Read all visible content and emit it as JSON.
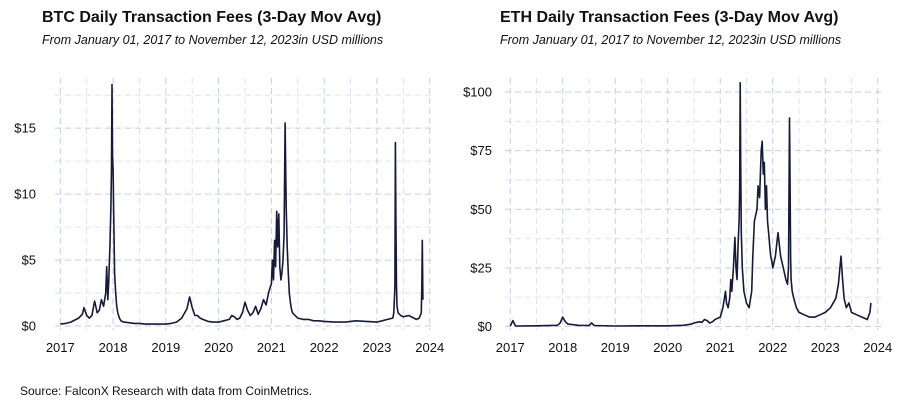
{
  "colors": {
    "line": "#17193a",
    "grid": "#c3cfe2"
  },
  "source": "Source: FalconX Research with data from CoinMetrics.",
  "chart_data": [
    {
      "type": "line",
      "title": "BTC Daily Transaction Fees (3-Day Mov Avg)",
      "subtitle": "From January 01, 2017 to November 12, 2023in USD millions",
      "xlabel": "",
      "ylabel": "",
      "xlim": [
        2016.9,
        2024.1
      ],
      "ylim": [
        -0.3,
        18.8
      ],
      "x_ticks": [
        2017,
        2018,
        2019,
        2020,
        2021,
        2022,
        2023,
        2024
      ],
      "x_tick_labels": [
        "2017",
        "2018",
        "2019",
        "2020",
        "2021",
        "2022",
        "2023",
        "2024"
      ],
      "y_ticks": [
        0,
        5,
        10,
        15
      ],
      "y_tick_labels": [
        "$0",
        "$5",
        "$10",
        "$15"
      ],
      "grid": true,
      "series": [
        {
          "name": "BTC fees",
          "x": [
            2017.0,
            2017.1,
            2017.2,
            2017.3,
            2017.35,
            2017.42,
            2017.45,
            2017.5,
            2017.55,
            2017.6,
            2017.65,
            2017.7,
            2017.74,
            2017.78,
            2017.82,
            2017.86,
            2017.88,
            2017.9,
            2017.92,
            2017.94,
            2017.96,
            2017.97,
            2017.98,
            2017.99,
            2018.0,
            2018.01,
            2018.02,
            2018.03,
            2018.05,
            2018.07,
            2018.09,
            2018.12,
            2018.15,
            2018.2,
            2018.3,
            2018.4,
            2018.5,
            2018.6,
            2018.7,
            2018.8,
            2018.9,
            2019.0,
            2019.1,
            2019.2,
            2019.3,
            2019.4,
            2019.45,
            2019.5,
            2019.55,
            2019.6,
            2019.65,
            2019.7,
            2019.8,
            2019.9,
            2020.0,
            2020.1,
            2020.2,
            2020.25,
            2020.3,
            2020.35,
            2020.4,
            2020.45,
            2020.5,
            2020.55,
            2020.6,
            2020.65,
            2020.7,
            2020.75,
            2020.8,
            2020.85,
            2020.9,
            2020.95,
            2021.0,
            2021.02,
            2021.04,
            2021.06,
            2021.08,
            2021.1,
            2021.12,
            2021.14,
            2021.16,
            2021.18,
            2021.2,
            2021.22,
            2021.24,
            2021.26,
            2021.28,
            2021.3,
            2021.32,
            2021.34,
            2021.36,
            2021.38,
            2021.4,
            2021.45,
            2021.5,
            2021.6,
            2021.7,
            2021.8,
            2021.9,
            2022.0,
            2022.2,
            2022.4,
            2022.6,
            2022.8,
            2023.0,
            2023.1,
            2023.2,
            2023.3,
            2023.32,
            2023.34,
            2023.35,
            2023.36,
            2023.37,
            2023.38,
            2023.4,
            2023.45,
            2023.5,
            2023.6,
            2023.7,
            2023.75,
            2023.8,
            2023.82,
            2023.84,
            2023.85,
            2023.86,
            2023.87
          ],
          "values": [
            0.15,
            0.2,
            0.3,
            0.5,
            0.6,
            0.9,
            1.4,
            0.8,
            0.6,
            0.8,
            1.9,
            1.0,
            1.2,
            2.0,
            1.5,
            2.5,
            4.5,
            2.0,
            3.5,
            6.0,
            9.0,
            12.0,
            18.3,
            13.0,
            11.8,
            9.0,
            6.5,
            4.0,
            2.5,
            1.5,
            1.0,
            0.6,
            0.4,
            0.3,
            0.25,
            0.2,
            0.2,
            0.15,
            0.15,
            0.15,
            0.15,
            0.15,
            0.2,
            0.3,
            0.6,
            1.3,
            2.2,
            1.4,
            0.8,
            0.8,
            0.6,
            0.5,
            0.35,
            0.3,
            0.3,
            0.4,
            0.5,
            0.8,
            0.7,
            0.5,
            0.6,
            1.0,
            1.8,
            1.2,
            0.8,
            1.0,
            1.5,
            0.9,
            1.3,
            2.0,
            1.6,
            2.6,
            3.2,
            5.0,
            3.5,
            6.5,
            4.5,
            8.7,
            6.0,
            8.5,
            4.5,
            3.5,
            4.0,
            5.0,
            7.0,
            15.4,
            9.0,
            6.0,
            4.0,
            2.5,
            1.8,
            1.3,
            1.0,
            0.8,
            0.6,
            0.5,
            0.5,
            0.4,
            0.4,
            0.35,
            0.3,
            0.3,
            0.4,
            0.35,
            0.3,
            0.4,
            0.5,
            0.6,
            1.0,
            3.0,
            13.9,
            8.0,
            3.0,
            1.5,
            1.0,
            0.8,
            0.7,
            0.8,
            0.6,
            0.5,
            0.6,
            0.8,
            1.0,
            3.0,
            6.5,
            2.0
          ]
        }
      ]
    },
    {
      "type": "line",
      "title": "ETH Daily Transaction Fees (3-Day Mov Avg)",
      "subtitle": "From January 01, 2017 to November 12, 2023in USD millions",
      "xlabel": "",
      "ylabel": "",
      "xlim": [
        2016.9,
        2024.1
      ],
      "ylim": [
        -1.5,
        106
      ],
      "x_ticks": [
        2017,
        2018,
        2019,
        2020,
        2021,
        2022,
        2023,
        2024
      ],
      "x_tick_labels": [
        "2017",
        "2018",
        "2019",
        "2020",
        "2021",
        "2022",
        "2023",
        "2024"
      ],
      "y_ticks": [
        0,
        25,
        50,
        75,
        100
      ],
      "y_tick_labels": [
        "$0",
        "$25",
        "$50",
        "$75",
        "$100"
      ],
      "grid": true,
      "series": [
        {
          "name": "ETH fees",
          "x": [
            2017.0,
            2017.05,
            2017.1,
            2017.5,
            2017.9,
            2017.95,
            2018.0,
            2018.05,
            2018.1,
            2018.3,
            2018.5,
            2018.55,
            2018.6,
            2019.0,
            2019.5,
            2020.0,
            2020.3,
            2020.45,
            2020.5,
            2020.6,
            2020.65,
            2020.7,
            2020.75,
            2020.8,
            2020.85,
            2020.9,
            2020.95,
            2021.0,
            2021.05,
            2021.1,
            2021.12,
            2021.15,
            2021.18,
            2021.2,
            2021.22,
            2021.25,
            2021.28,
            2021.3,
            2021.32,
            2021.34,
            2021.36,
            2021.37,
            2021.38,
            2021.39,
            2021.4,
            2021.42,
            2021.45,
            2021.5,
            2021.55,
            2021.6,
            2021.62,
            2021.65,
            2021.7,
            2021.72,
            2021.75,
            2021.78,
            2021.8,
            2021.82,
            2021.84,
            2021.86,
            2021.88,
            2021.9,
            2021.92,
            2021.94,
            2021.96,
            2021.98,
            2022.0,
            2022.05,
            2022.1,
            2022.15,
            2022.2,
            2022.25,
            2022.28,
            2022.3,
            2022.32,
            2022.33,
            2022.34,
            2022.35,
            2022.37,
            2022.4,
            2022.45,
            2022.5,
            2022.6,
            2022.7,
            2022.8,
            2022.9,
            2023.0,
            2023.1,
            2023.2,
            2023.25,
            2023.3,
            2023.33,
            2023.36,
            2023.4,
            2023.45,
            2023.5,
            2023.6,
            2023.7,
            2023.8,
            2023.85,
            2023.87
          ],
          "values": [
            0.1,
            2.5,
            0.2,
            0.3,
            0.5,
            1.5,
            4.0,
            2.0,
            1.0,
            0.5,
            0.4,
            1.5,
            0.4,
            0.2,
            0.3,
            0.3,
            0.5,
            1.0,
            1.5,
            2.0,
            1.8,
            3.0,
            2.5,
            1.5,
            2.0,
            3.0,
            3.5,
            4.0,
            8.0,
            15.0,
            10.0,
            8.0,
            12.0,
            20.0,
            15.0,
            25.0,
            38.0,
            25.0,
            20.0,
            35.0,
            45.0,
            60.0,
            104.0,
            70.0,
            40.0,
            25.0,
            15.0,
            10.0,
            8.0,
            15.0,
            30.0,
            45.0,
            50.0,
            60.0,
            55.0,
            75.0,
            79.0,
            65.0,
            70.0,
            50.0,
            60.0,
            45.0,
            40.0,
            35.0,
            30.0,
            28.0,
            25.0,
            30.0,
            40.0,
            30.0,
            25.0,
            20.0,
            18.0,
            25.0,
            89.0,
            60.0,
            30.0,
            20.0,
            15.0,
            12.0,
            8.0,
            6.0,
            5.0,
            4.0,
            4.0,
            5.0,
            6.0,
            8.0,
            12.0,
            18.0,
            30.0,
            20.0,
            12.0,
            8.0,
            10.0,
            6.0,
            5.0,
            4.0,
            3.0,
            6.0,
            10.0
          ]
        }
      ]
    }
  ]
}
